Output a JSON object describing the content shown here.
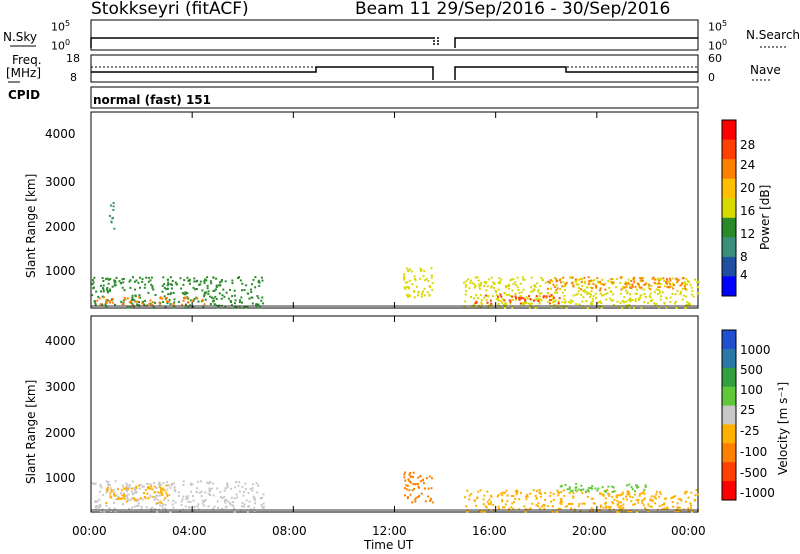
{
  "header": {
    "title_left": "Stokkseyri (fitACF)",
    "title_right": "Beam 11  29/Sep/2016 - 30/Sep/2016"
  },
  "panels": {
    "nsky_label": "N.Sky",
    "nsky_tick_top": "10^5",
    "nsky_tick_bottom": "10^0",
    "nsearch_label": "N.Search",
    "nsearch_tick_top": "10^5",
    "nsearch_tick_bottom": "10^0",
    "freq_label": "Freq.",
    "freq_unit": "[MHz]",
    "freq_tick_top": "18",
    "freq_tick_bottom": "8",
    "nave_label": "Nave",
    "nave_tick_top": "60",
    "nave_tick_bottom": "0",
    "cpid_label": "CPID",
    "cpid_value": "normal (fast) 151"
  },
  "axes": {
    "y_label": "Slant Range [km]",
    "x_label": "Time UT",
    "y_ticks": [
      "4000",
      "3000",
      "2000",
      "1000"
    ],
    "x_ticks": [
      "00:00",
      "04:00",
      "08:00",
      "12:00",
      "16:00",
      "20:00",
      "00:00"
    ]
  },
  "colorbars": {
    "power_label": "Power [dB]",
    "power_ticks": [
      "28",
      "24",
      "20",
      "16",
      "12",
      "8",
      "4"
    ],
    "power_colors": [
      "#ff0000",
      "#ff4000",
      "#ff8000",
      "#ffbf00",
      "#d9d900",
      "#2a8a2a",
      "#3a8f7a",
      "#1f4fa0",
      "#0000ff"
    ],
    "velocity_label": "Velocity [m s⁻¹]",
    "velocity_ticks": [
      "1000",
      "500",
      "100",
      "25",
      "-25",
      "-100",
      "-500",
      "-1000"
    ],
    "velocity_colors": [
      "#2050d0",
      "#2a78a8",
      "#30a040",
      "#5ec83a",
      "#c8c8c8",
      "#ffb000",
      "#ff8000",
      "#ff4000",
      "#ff0000"
    ]
  },
  "chart_data": [
    {
      "type": "heatmap",
      "title": "",
      "xlabel": "Time UT",
      "ylabel": "Slant Range [km]",
      "colorbar_label": "Power [dB]",
      "x_range": [
        "00:00",
        "24:00"
      ],
      "ylim": [
        180,
        4600
      ],
      "clim": [
        0,
        30
      ],
      "regions": [
        {
          "t0": 0.0,
          "t1": 6.8,
          "r0": 200,
          "r1": 900,
          "value": 12
        },
        {
          "t0": 0.2,
          "t1": 4.5,
          "r0": 250,
          "r1": 450,
          "value": 24
        },
        {
          "t0": 0.7,
          "t1": 0.9,
          "r0": 1900,
          "r1": 2600,
          "value": 8
        },
        {
          "t0": 12.3,
          "t1": 13.5,
          "r0": 400,
          "r1": 1100,
          "value": 14
        },
        {
          "t0": 14.7,
          "t1": 24.0,
          "r0": 200,
          "r1": 900,
          "value": 16
        },
        {
          "t0": 15.0,
          "t1": 18.5,
          "r0": 300,
          "r1": 500,
          "value": 28
        },
        {
          "t0": 18.0,
          "t1": 23.5,
          "r0": 600,
          "r1": 900,
          "value": 22
        }
      ]
    },
    {
      "type": "heatmap",
      "title": "",
      "xlabel": "Time UT",
      "ylabel": "Slant Range [km]",
      "colorbar_label": "Velocity [m s⁻¹]",
      "x_range": [
        "00:00",
        "24:00"
      ],
      "ylim": [
        180,
        4600
      ],
      "regions": [
        {
          "t0": 0.0,
          "t1": 6.8,
          "r0": 200,
          "r1": 900,
          "value": -25
        },
        {
          "t0": 0.5,
          "t1": 3.0,
          "r0": 400,
          "r1": 800,
          "value": -100
        },
        {
          "t0": 12.3,
          "t1": 13.5,
          "r0": 400,
          "r1": 1100,
          "value": -500
        },
        {
          "t0": 14.7,
          "t1": 24.0,
          "r0": 200,
          "r1": 700,
          "value": -100
        },
        {
          "t0": 18.5,
          "t1": 22.0,
          "r0": 650,
          "r1": 850,
          "value": 25
        }
      ]
    }
  ]
}
